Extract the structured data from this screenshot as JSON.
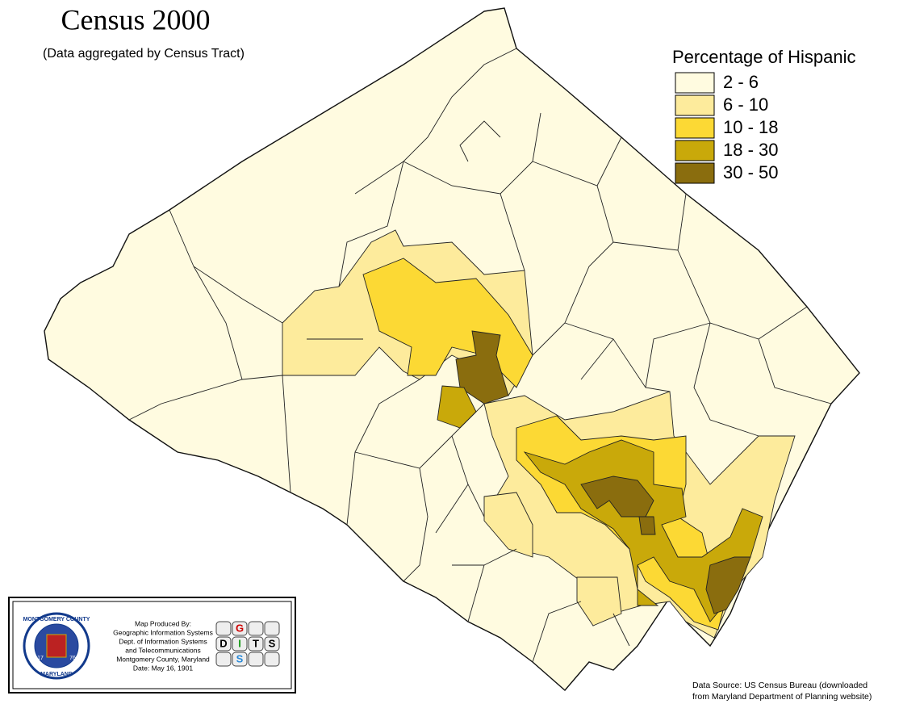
{
  "header": {
    "title": "Census 2000",
    "subtitle": "(Data aggregated by Census Tract)"
  },
  "legend": {
    "title": "Percentage of Hispanic",
    "items": [
      {
        "label": "2 - 6",
        "color": "#fffbe0"
      },
      {
        "label": "6 - 10",
        "color": "#fdeb9c"
      },
      {
        "label": "10 - 18",
        "color": "#fcd934"
      },
      {
        "label": "18 - 30",
        "color": "#c9a90a"
      },
      {
        "label": "30 - 50",
        "color": "#8a6d0e"
      }
    ]
  },
  "credits": {
    "seal": {
      "top": "MONTGOMERY COUNTY",
      "bottom": "MARYLAND",
      "left": "17",
      "right": "76"
    },
    "lines": [
      "Map Produced By:",
      "Geographic Information Systems",
      "Dept. of Information Systems",
      "and Telecommunications",
      "Montgomery County, Maryland",
      "Date: May 16, 1901"
    ],
    "logo": [
      "G",
      "D",
      "I",
      "S",
      "T",
      "S"
    ]
  },
  "source": [
    "Data Source:  US Census Bureau (downloaded",
    "from Maryland Department of Planning website)"
  ]
}
